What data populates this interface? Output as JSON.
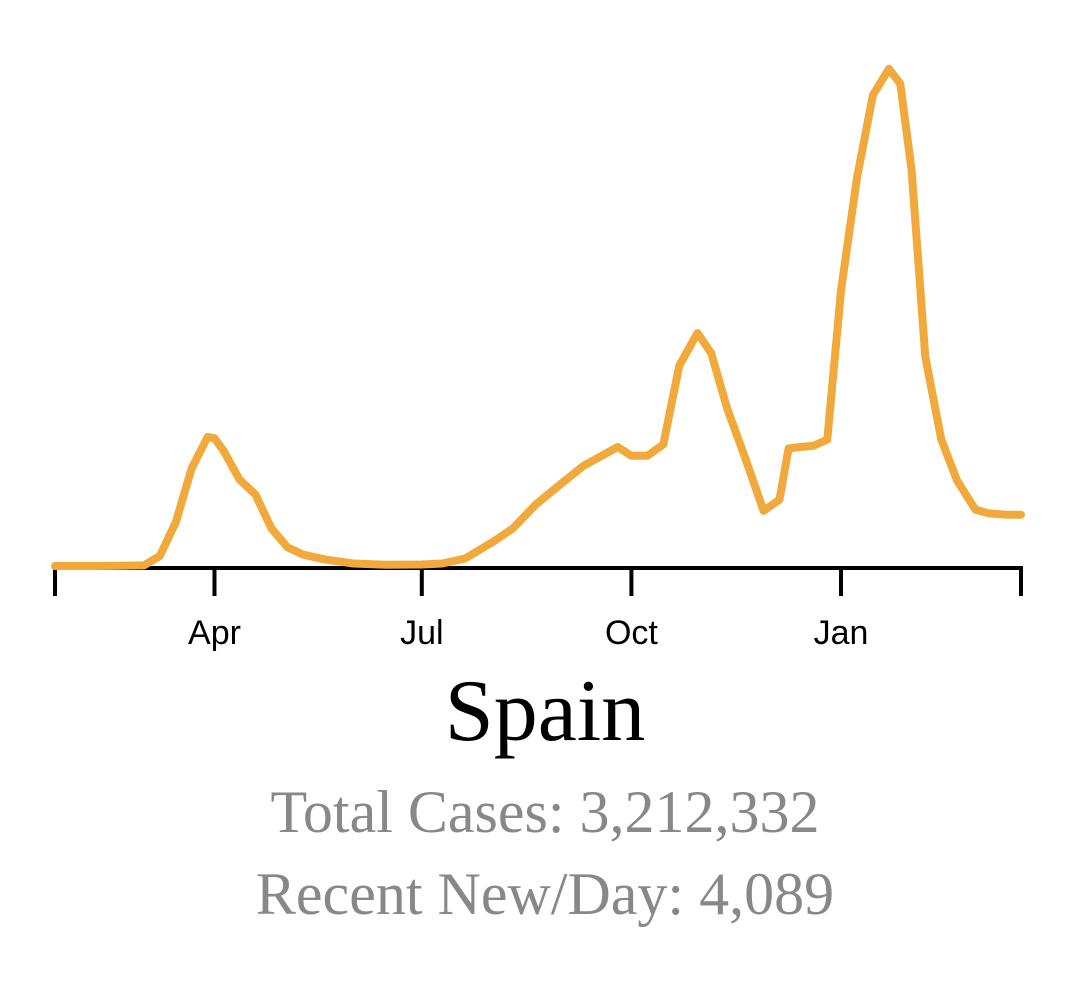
{
  "title": "Spain",
  "stats": {
    "total_label": "Total Cases: 3,212,332",
    "recent_label": "Recent New/Day: 4,089"
  },
  "colors": {
    "line": "#f1a93b",
    "axis": "#000000"
  },
  "chart_data": {
    "type": "line",
    "title": "Spain",
    "xlabel": "",
    "ylabel": "",
    "grid": false,
    "x_tick_labels": [
      "Apr",
      "Jul",
      "Oct",
      "Jan"
    ],
    "x_ticks": [
      "2020-04-01",
      "2020-07-01",
      "2020-10-01",
      "2021-01-01"
    ],
    "xlim": [
      "2020-01-22",
      "2021-03-21"
    ],
    "ylim": [
      0,
      40000
    ],
    "series": [
      {
        "x": [
          "2020-01-22",
          "2020-02-10",
          "2020-03-01",
          "2020-03-08",
          "2020-03-15",
          "2020-03-22",
          "2020-03-29",
          "2020-04-01",
          "2020-04-05",
          "2020-04-12",
          "2020-04-19",
          "2020-04-26",
          "2020-05-03",
          "2020-05-10",
          "2020-05-20",
          "2020-06-01",
          "2020-06-15",
          "2020-07-01",
          "2020-07-10",
          "2020-07-20",
          "2020-08-01",
          "2020-08-10",
          "2020-08-20",
          "2020-09-01",
          "2020-09-10",
          "2020-09-18",
          "2020-09-25",
          "2020-10-01",
          "2020-10-08",
          "2020-10-15",
          "2020-10-22",
          "2020-10-30",
          "2020-11-05",
          "2020-11-12",
          "2020-11-20",
          "2020-11-28",
          "2020-12-05",
          "2020-12-09",
          "2020-12-14",
          "2020-12-20",
          "2020-12-26",
          "2021-01-01",
          "2021-01-08",
          "2021-01-15",
          "2021-01-22",
          "2021-01-27",
          "2021-02-01",
          "2021-02-07",
          "2021-02-14",
          "2021-02-21",
          "2021-03-01",
          "2021-03-07",
          "2021-03-14",
          "2021-03-21"
        ],
        "y": [
          0,
          0,
          50,
          800,
          3500,
          7800,
          10300,
          10200,
          9200,
          6900,
          5700,
          3000,
          1500,
          900,
          500,
          200,
          100,
          120,
          200,
          600,
          1900,
          3000,
          4900,
          6700,
          8000,
          8800,
          9500,
          8800,
          8800,
          9700,
          16000,
          18600,
          17000,
          12600,
          8600,
          4400,
          5300,
          9400,
          9500,
          9600,
          10100,
          22000,
          31000,
          37600,
          39700,
          38500,
          31600,
          16700,
          10100,
          6800,
          4500,
          4200,
          4100,
          4089
        ]
      }
    ]
  }
}
